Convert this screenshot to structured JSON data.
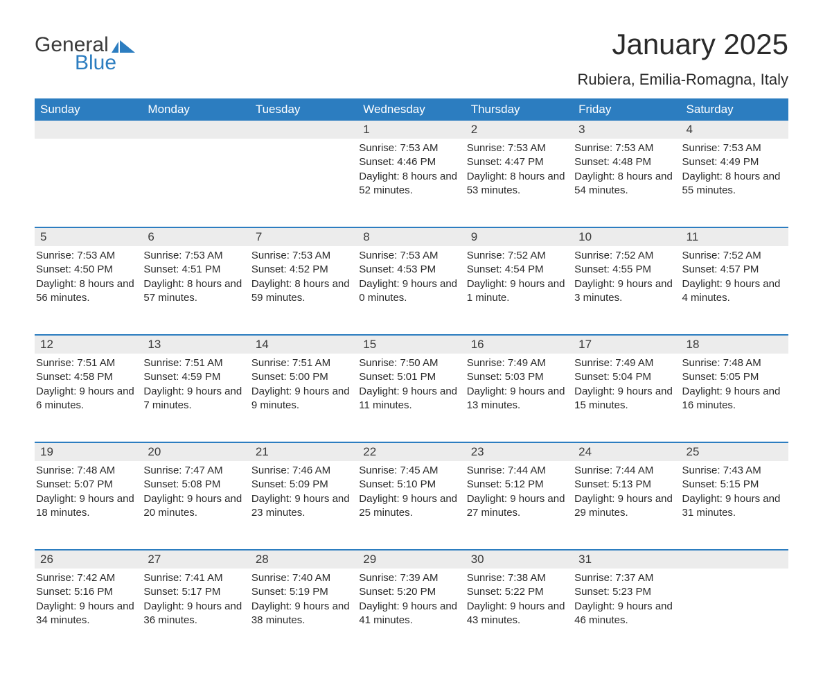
{
  "logo": {
    "text_general": "General",
    "text_blue": "Blue",
    "color_dark": "#3a3a3a",
    "color_blue": "#2c7dc0"
  },
  "title": "January 2025",
  "location": "Rubiera, Emilia-Romagna, Italy",
  "colors": {
    "header_bg": "#2c7dc0",
    "header_text": "#ffffff",
    "daynum_bg": "#ececec",
    "text": "#2a2a2a",
    "border": "#2c7dc0"
  },
  "day_headers": [
    "Sunday",
    "Monday",
    "Tuesday",
    "Wednesday",
    "Thursday",
    "Friday",
    "Saturday"
  ],
  "weeks": [
    [
      {
        "num": "",
        "sunrise": "",
        "sunset": "",
        "daylight": ""
      },
      {
        "num": "",
        "sunrise": "",
        "sunset": "",
        "daylight": ""
      },
      {
        "num": "",
        "sunrise": "",
        "sunset": "",
        "daylight": ""
      },
      {
        "num": "1",
        "sunrise": "Sunrise: 7:53 AM",
        "sunset": "Sunset: 4:46 PM",
        "daylight": "Daylight: 8 hours and 52 minutes."
      },
      {
        "num": "2",
        "sunrise": "Sunrise: 7:53 AM",
        "sunset": "Sunset: 4:47 PM",
        "daylight": "Daylight: 8 hours and 53 minutes."
      },
      {
        "num": "3",
        "sunrise": "Sunrise: 7:53 AM",
        "sunset": "Sunset: 4:48 PM",
        "daylight": "Daylight: 8 hours and 54 minutes."
      },
      {
        "num": "4",
        "sunrise": "Sunrise: 7:53 AM",
        "sunset": "Sunset: 4:49 PM",
        "daylight": "Daylight: 8 hours and 55 minutes."
      }
    ],
    [
      {
        "num": "5",
        "sunrise": "Sunrise: 7:53 AM",
        "sunset": "Sunset: 4:50 PM",
        "daylight": "Daylight: 8 hours and 56 minutes."
      },
      {
        "num": "6",
        "sunrise": "Sunrise: 7:53 AM",
        "sunset": "Sunset: 4:51 PM",
        "daylight": "Daylight: 8 hours and 57 minutes."
      },
      {
        "num": "7",
        "sunrise": "Sunrise: 7:53 AM",
        "sunset": "Sunset: 4:52 PM",
        "daylight": "Daylight: 8 hours and 59 minutes."
      },
      {
        "num": "8",
        "sunrise": "Sunrise: 7:53 AM",
        "sunset": "Sunset: 4:53 PM",
        "daylight": "Daylight: 9 hours and 0 minutes."
      },
      {
        "num": "9",
        "sunrise": "Sunrise: 7:52 AM",
        "sunset": "Sunset: 4:54 PM",
        "daylight": "Daylight: 9 hours and 1 minute."
      },
      {
        "num": "10",
        "sunrise": "Sunrise: 7:52 AM",
        "sunset": "Sunset: 4:55 PM",
        "daylight": "Daylight: 9 hours and 3 minutes."
      },
      {
        "num": "11",
        "sunrise": "Sunrise: 7:52 AM",
        "sunset": "Sunset: 4:57 PM",
        "daylight": "Daylight: 9 hours and 4 minutes."
      }
    ],
    [
      {
        "num": "12",
        "sunrise": "Sunrise: 7:51 AM",
        "sunset": "Sunset: 4:58 PM",
        "daylight": "Daylight: 9 hours and 6 minutes."
      },
      {
        "num": "13",
        "sunrise": "Sunrise: 7:51 AM",
        "sunset": "Sunset: 4:59 PM",
        "daylight": "Daylight: 9 hours and 7 minutes."
      },
      {
        "num": "14",
        "sunrise": "Sunrise: 7:51 AM",
        "sunset": "Sunset: 5:00 PM",
        "daylight": "Daylight: 9 hours and 9 minutes."
      },
      {
        "num": "15",
        "sunrise": "Sunrise: 7:50 AM",
        "sunset": "Sunset: 5:01 PM",
        "daylight": "Daylight: 9 hours and 11 minutes."
      },
      {
        "num": "16",
        "sunrise": "Sunrise: 7:49 AM",
        "sunset": "Sunset: 5:03 PM",
        "daylight": "Daylight: 9 hours and 13 minutes."
      },
      {
        "num": "17",
        "sunrise": "Sunrise: 7:49 AM",
        "sunset": "Sunset: 5:04 PM",
        "daylight": "Daylight: 9 hours and 15 minutes."
      },
      {
        "num": "18",
        "sunrise": "Sunrise: 7:48 AM",
        "sunset": "Sunset: 5:05 PM",
        "daylight": "Daylight: 9 hours and 16 minutes."
      }
    ],
    [
      {
        "num": "19",
        "sunrise": "Sunrise: 7:48 AM",
        "sunset": "Sunset: 5:07 PM",
        "daylight": "Daylight: 9 hours and 18 minutes."
      },
      {
        "num": "20",
        "sunrise": "Sunrise: 7:47 AM",
        "sunset": "Sunset: 5:08 PM",
        "daylight": "Daylight: 9 hours and 20 minutes."
      },
      {
        "num": "21",
        "sunrise": "Sunrise: 7:46 AM",
        "sunset": "Sunset: 5:09 PM",
        "daylight": "Daylight: 9 hours and 23 minutes."
      },
      {
        "num": "22",
        "sunrise": "Sunrise: 7:45 AM",
        "sunset": "Sunset: 5:10 PM",
        "daylight": "Daylight: 9 hours and 25 minutes."
      },
      {
        "num": "23",
        "sunrise": "Sunrise: 7:44 AM",
        "sunset": "Sunset: 5:12 PM",
        "daylight": "Daylight: 9 hours and 27 minutes."
      },
      {
        "num": "24",
        "sunrise": "Sunrise: 7:44 AM",
        "sunset": "Sunset: 5:13 PM",
        "daylight": "Daylight: 9 hours and 29 minutes."
      },
      {
        "num": "25",
        "sunrise": "Sunrise: 7:43 AM",
        "sunset": "Sunset: 5:15 PM",
        "daylight": "Daylight: 9 hours and 31 minutes."
      }
    ],
    [
      {
        "num": "26",
        "sunrise": "Sunrise: 7:42 AM",
        "sunset": "Sunset: 5:16 PM",
        "daylight": "Daylight: 9 hours and 34 minutes."
      },
      {
        "num": "27",
        "sunrise": "Sunrise: 7:41 AM",
        "sunset": "Sunset: 5:17 PM",
        "daylight": "Daylight: 9 hours and 36 minutes."
      },
      {
        "num": "28",
        "sunrise": "Sunrise: 7:40 AM",
        "sunset": "Sunset: 5:19 PM",
        "daylight": "Daylight: 9 hours and 38 minutes."
      },
      {
        "num": "29",
        "sunrise": "Sunrise: 7:39 AM",
        "sunset": "Sunset: 5:20 PM",
        "daylight": "Daylight: 9 hours and 41 minutes."
      },
      {
        "num": "30",
        "sunrise": "Sunrise: 7:38 AM",
        "sunset": "Sunset: 5:22 PM",
        "daylight": "Daylight: 9 hours and 43 minutes."
      },
      {
        "num": "31",
        "sunrise": "Sunrise: 7:37 AM",
        "sunset": "Sunset: 5:23 PM",
        "daylight": "Daylight: 9 hours and 46 minutes."
      },
      {
        "num": "",
        "sunrise": "",
        "sunset": "",
        "daylight": ""
      }
    ]
  ]
}
